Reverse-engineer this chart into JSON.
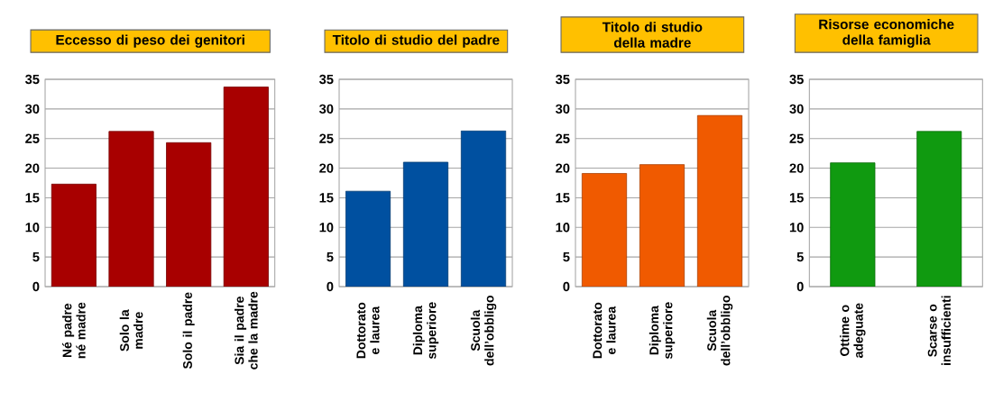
{
  "chart_data": [
    {
      "type": "bar",
      "title": "Eccesso di peso dei genitori",
      "categories": [
        "Né padre né madre",
        "Solo la madre",
        "Solo il padre",
        "Sia il padre che la madre"
      ],
      "values": [
        17.3,
        26.2,
        24.3,
        33.7
      ],
      "color": "#a80000",
      "ylim": [
        0,
        35
      ],
      "yticks": [
        0,
        5,
        10,
        15,
        20,
        25,
        30,
        35
      ],
      "grid": "y"
    },
    {
      "type": "bar",
      "title": "Titolo di studio del padre",
      "categories": [
        "Dottorato e laurea",
        "Diploma superiore",
        "Scuola dell’obbligo"
      ],
      "values": [
        16.1,
        21.0,
        26.3
      ],
      "color": "#0050a0",
      "ylim": [
        0,
        35
      ],
      "yticks": [
        0,
        5,
        10,
        15,
        20,
        25,
        30,
        35
      ],
      "grid": "y"
    },
    {
      "type": "bar",
      "title": "Titolo di studio della madre",
      "categories": [
        "Dottorato e laurea",
        "Diploma superiore",
        "Scuola dell’obbligo"
      ],
      "values": [
        19.1,
        20.6,
        28.9
      ],
      "color": "#f05a00",
      "ylim": [
        0,
        35
      ],
      "yticks": [
        0,
        5,
        10,
        15,
        20,
        25,
        30,
        35
      ],
      "grid": "y"
    },
    {
      "type": "bar",
      "title": "Risorse economiche della famiglia",
      "categories": [
        "Ottime o adeguate",
        "Scarse o insufficienti"
      ],
      "values": [
        20.9,
        26.2
      ],
      "color": "#109a10",
      "ylim": [
        0,
        35
      ],
      "yticks": [
        0,
        5,
        10,
        15,
        20,
        25,
        30,
        35
      ],
      "grid": "y"
    }
  ]
}
